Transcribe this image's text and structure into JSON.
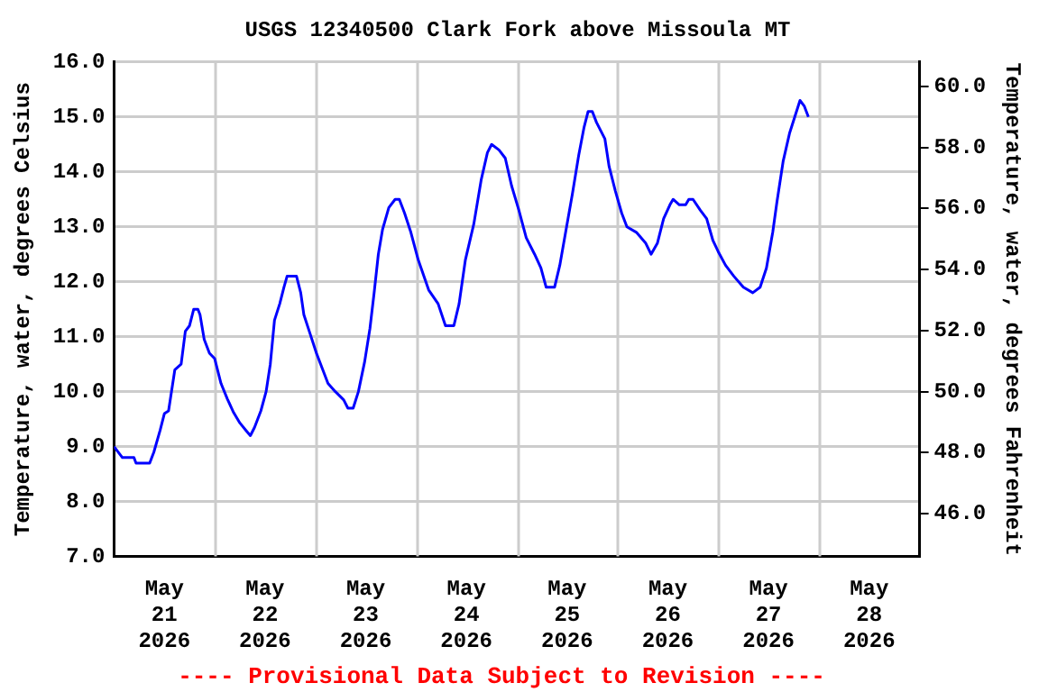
{
  "chart_data": {
    "type": "line",
    "title": "USGS 12340500 Clark Fork above Missoula MT",
    "ylabel": "Temperature, water, degrees Celsius",
    "y2label": "Temperature, water, degrees Fahrenheit",
    "annotations": [
      "---- Provisional Data Subject to Revision ----"
    ],
    "xlim": [
      "2026-05-21T00:00",
      "2026-05-29T00:00"
    ],
    "xticks": [
      {
        "value": "2026-05-21T12:00",
        "label": "May\n21\n2026"
      },
      {
        "value": "2026-05-22T00:00",
        "label": null
      },
      {
        "value": "2026-05-22T12:00",
        "label": "May\n22\n2026"
      },
      {
        "value": "2026-05-23T00:00",
        "label": null
      },
      {
        "value": "2026-05-23T12:00",
        "label": "May\n23\n2026"
      },
      {
        "value": "2026-05-24T00:00",
        "label": null
      },
      {
        "value": "2026-05-24T12:00",
        "label": "May\n24\n2026"
      },
      {
        "value": "2026-05-25T00:00",
        "label": null
      },
      {
        "value": "2026-05-25T12:00",
        "label": "May\n25\n2026"
      },
      {
        "value": "2026-05-26T00:00",
        "label": null
      },
      {
        "value": "2026-05-26T12:00",
        "label": "May\n26\n2026"
      },
      {
        "value": "2026-05-27T00:00",
        "label": null
      },
      {
        "value": "2026-05-27T12:00",
        "label": "May\n27\n2026"
      },
      {
        "value": "2026-05-28T00:00",
        "label": null
      },
      {
        "value": "2026-05-28T12:00",
        "label": "May\n28\n2026"
      }
    ],
    "ylim": [
      7,
      16
    ],
    "yticks": [
      {
        "value": 7,
        "label": "7.0"
      },
      {
        "value": 8,
        "label": "8.0"
      },
      {
        "value": 9,
        "label": "9.0"
      },
      {
        "value": 10,
        "label": "10.0"
      },
      {
        "value": 11,
        "label": "11.0"
      },
      {
        "value": 12,
        "label": "12.0"
      },
      {
        "value": 13,
        "label": "13.0"
      },
      {
        "value": 14,
        "label": "14.0"
      },
      {
        "value": 15,
        "label": "15.0"
      },
      {
        "value": 16,
        "label": "16.0"
      }
    ],
    "y2lim": [
      44.6,
      60.8
    ],
    "y2ticks": [
      {
        "value": 46,
        "label": "46.0"
      },
      {
        "value": 48,
        "label": "48.0"
      },
      {
        "value": 50,
        "label": "50.0"
      },
      {
        "value": 52,
        "label": "52.0"
      },
      {
        "value": 54,
        "label": "54.0"
      },
      {
        "value": 56,
        "label": "56.0"
      },
      {
        "value": 58,
        "label": "58.0"
      },
      {
        "value": 60,
        "label": "60.0"
      }
    ],
    "grid": true,
    "legend": false,
    "marker": "none",
    "line_style": "solid",
    "x": [
      "2026-05-21T00:00",
      "2026-05-21T02:00",
      "2026-05-21T04:45",
      "2026-05-21T05:15",
      "2026-05-21T08:30",
      "2026-05-21T09:30",
      "2026-05-21T11:00",
      "2026-05-21T12:00",
      "2026-05-21T13:00",
      "2026-05-21T14:30",
      "2026-05-21T16:00",
      "2026-05-21T17:00",
      "2026-05-21T18:00",
      "2026-05-21T19:00",
      "2026-05-21T20:00",
      "2026-05-21T20:30",
      "2026-05-21T21:30",
      "2026-05-21T22:45",
      "2026-05-22T00:00",
      "2026-05-22T01:30",
      "2026-05-22T03:00",
      "2026-05-22T04:30",
      "2026-05-22T06:00",
      "2026-05-22T07:30",
      "2026-05-22T08:30",
      "2026-05-22T09:30",
      "2026-05-22T11:00",
      "2026-05-22T12:15",
      "2026-05-22T13:15",
      "2026-05-22T14:15",
      "2026-05-22T15:30",
      "2026-05-22T16:30",
      "2026-05-22T17:15",
      "2026-05-22T19:30",
      "2026-05-22T20:30",
      "2026-05-22T21:15",
      "2026-05-22T22:45",
      "2026-05-23T00:15",
      "2026-05-23T01:30",
      "2026-05-23T03:00",
      "2026-05-23T04:45",
      "2026-05-23T06:45",
      "2026-05-23T07:45",
      "2026-05-23T09:00",
      "2026-05-23T10:15",
      "2026-05-23T11:45",
      "2026-05-23T13:00",
      "2026-05-23T14:00",
      "2026-05-23T15:00",
      "2026-05-23T16:00",
      "2026-05-23T17:30",
      "2026-05-23T19:00",
      "2026-05-23T20:00",
      "2026-05-23T21:15",
      "2026-05-23T22:45",
      "2026-05-24T00:30",
      "2026-05-24T03:00",
      "2026-05-24T05:15",
      "2026-05-24T07:00",
      "2026-05-24T09:00",
      "2026-05-24T10:15",
      "2026-05-24T11:45",
      "2026-05-24T13:45",
      "2026-05-24T15:30",
      "2026-05-24T17:00",
      "2026-05-24T18:00",
      "2026-05-24T19:45",
      "2026-05-24T21:15",
      "2026-05-24T22:45",
      "2026-05-25T00:30",
      "2026-05-25T02:15",
      "2026-05-25T04:15",
      "2026-05-25T05:45",
      "2026-05-25T07:00",
      "2026-05-25T09:00",
      "2026-05-25T10:15",
      "2026-05-25T11:45",
      "2026-05-25T13:15",
      "2026-05-25T14:45",
      "2026-05-25T16:00",
      "2026-05-25T17:00",
      "2026-05-25T18:00",
      "2026-05-25T19:00",
      "2026-05-25T21:00",
      "2026-05-25T22:00",
      "2026-05-25T23:30",
      "2026-05-26T01:00",
      "2026-05-26T02:15",
      "2026-05-26T04:30",
      "2026-05-26T06:45",
      "2026-05-26T08:00",
      "2026-05-26T09:30",
      "2026-05-26T11:00",
      "2026-05-26T12:30",
      "2026-05-26T13:15",
      "2026-05-26T14:45",
      "2026-05-26T16:15",
      "2026-05-26T17:00",
      "2026-05-26T18:00",
      "2026-05-26T19:45",
      "2026-05-26T21:15",
      "2026-05-26T22:45",
      "2026-05-27T00:00",
      "2026-05-27T01:45",
      "2026-05-27T03:45",
      "2026-05-27T06:00",
      "2026-05-27T08:15",
      "2026-05-27T10:00",
      "2026-05-27T11:30",
      "2026-05-27T13:00",
      "2026-05-27T14:00",
      "2026-05-27T15:30",
      "2026-05-27T17:00",
      "2026-05-27T18:15",
      "2026-05-27T19:30",
      "2026-05-27T20:30",
      "2026-05-27T21:30"
    ],
    "series": [
      {
        "color": "#0000ff",
        "values": [
          9.0,
          8.8,
          8.8,
          8.7,
          8.7,
          8.9,
          9.3,
          9.6,
          9.65,
          10.4,
          10.5,
          11.1,
          11.2,
          11.5,
          11.5,
          11.4,
          10.95,
          10.7,
          10.6,
          10.15,
          9.87,
          9.62,
          9.43,
          9.29,
          9.2,
          9.35,
          9.65,
          10.0,
          10.5,
          11.3,
          11.6,
          11.9,
          12.1,
          12.1,
          11.8,
          11.4,
          11.05,
          10.7,
          10.45,
          10.15,
          10.0,
          9.85,
          9.7,
          9.7,
          10.0,
          10.55,
          11.15,
          11.8,
          12.5,
          12.95,
          13.35,
          13.5,
          13.5,
          13.25,
          12.9,
          12.4,
          11.85,
          11.6,
          11.2,
          11.2,
          11.6,
          12.4,
          13.05,
          13.85,
          14.35,
          14.5,
          14.4,
          14.25,
          13.75,
          13.3,
          12.8,
          12.5,
          12.25,
          11.9,
          11.9,
          12.3,
          12.95,
          13.6,
          14.3,
          14.8,
          15.1,
          15.1,
          14.9,
          14.6,
          14.1,
          13.65,
          13.25,
          13.0,
          12.9,
          12.7,
          12.5,
          12.7,
          13.15,
          13.4,
          13.5,
          13.4,
          13.4,
          13.5,
          13.5,
          13.3,
          13.15,
          12.75,
          12.55,
          12.3,
          12.1,
          11.9,
          11.8,
          11.9,
          12.25,
          12.9,
          13.45,
          14.2,
          14.7,
          15.0,
          15.3,
          15.2,
          15.0
        ]
      }
    ]
  }
}
